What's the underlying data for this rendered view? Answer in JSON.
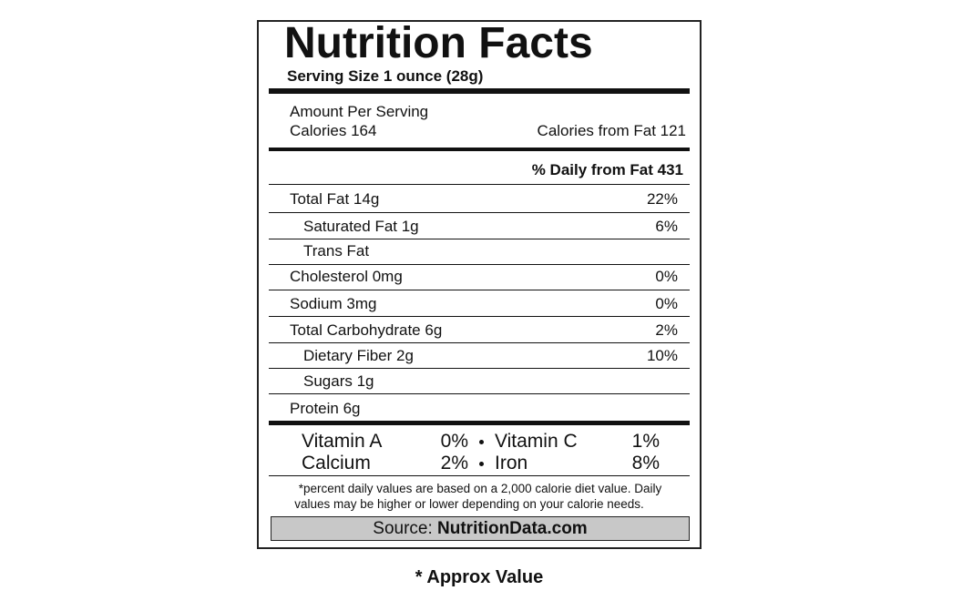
{
  "header": {
    "title": "Nutrition Facts",
    "serving_size": "Serving Size 1 ounce (28g)"
  },
  "calories": {
    "amount_per_serving": "Amount Per Serving",
    "calories": "Calories 164",
    "calories_from_fat": "Calories from Fat 121"
  },
  "daily_header": "% Daily from Fat 431",
  "nutrients": [
    {
      "label": "Total Fat 14g",
      "percent": "22%"
    },
    {
      "label": "Saturated Fat 1g",
      "percent": "6%"
    },
    {
      "label": "Trans Fat"
    },
    {
      "label": "Cholesterol 0mg",
      "percent": "0%"
    },
    {
      "label": "Sodium 3mg",
      "percent": "0%"
    },
    {
      "label": "Total Carbohydrate 6g",
      "percent": "2%"
    },
    {
      "label": "Dietary Fiber 2g",
      "percent": "10%"
    },
    {
      "label": "Sugars 1g"
    },
    {
      "label": "Protein 6g"
    }
  ],
  "vitamins": [
    {
      "left": "Vitamin A",
      "left_percent": "0%",
      "right": "Vitamin C",
      "right_percent": "1%"
    },
    {
      "left": "Calcium",
      "left_percent": "2%",
      "right": "Iron",
      "right_percent": "8%"
    }
  ],
  "footnote": [
    "*percent daily values are based on a 2,000 calorie diet value. Daily",
    "values may be higher or lower depending on your calorie needs."
  ],
  "source": {
    "prefix": "Source:",
    "site": "NutritionData.com"
  },
  "note": "* Approx Value"
}
